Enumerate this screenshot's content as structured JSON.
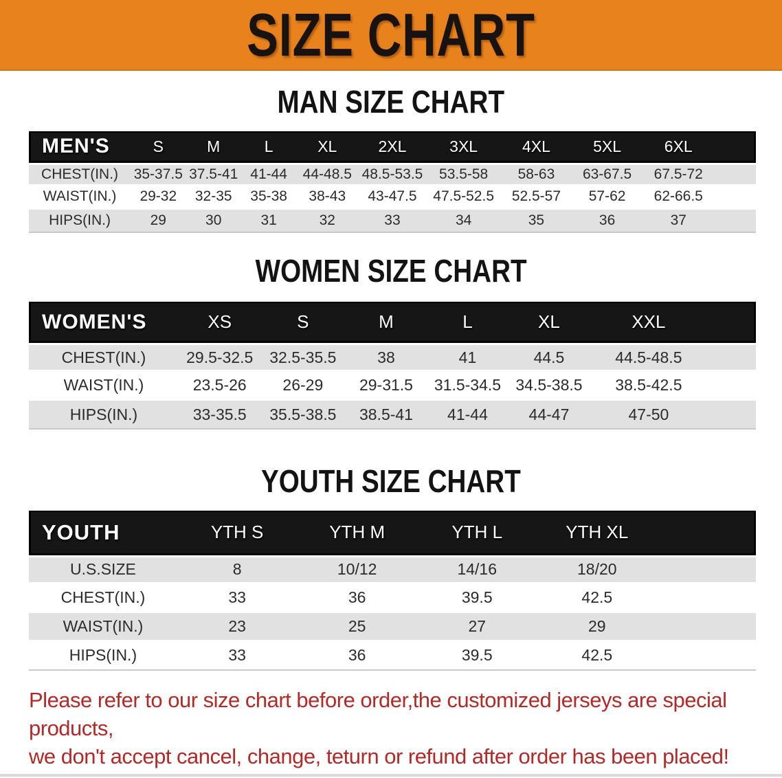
{
  "banner": {
    "title": "SIZE CHART"
  },
  "colors": {
    "banner_bg": "#e8821c",
    "header_bar": "#161616",
    "stripe": "#e1e1e1",
    "disclaimer_text": "#b22a28"
  },
  "sections": [
    {
      "title": "MAN SIZE CHART",
      "table": {
        "header_label": "MEN'S",
        "columns": [
          "S",
          "M",
          "L",
          "XL",
          "2XL",
          "3XL",
          "4XL",
          "5XL",
          "6XL"
        ],
        "rows": [
          {
            "label": "CHEST(IN.)",
            "values": [
              "35-37.5",
              "37.5-41",
              "41-44",
              "44-48.5",
              "48.5-53.5",
              "53.5-58",
              "58-63",
              "63-67.5",
              "67.5-72"
            ]
          },
          {
            "label": "WAIST(IN.)",
            "values": [
              "29-32",
              "32-35",
              "35-38",
              "38-43",
              "43-47.5",
              "47.5-52.5",
              "52.5-57",
              "57-62",
              "62-66.5"
            ]
          },
          {
            "label": "HIPS(IN.)",
            "values": [
              "29",
              "30",
              "31",
              "32",
              "33",
              "34",
              "35",
              "36",
              "37"
            ]
          }
        ]
      }
    },
    {
      "title": "WOMEN SIZE CHART",
      "table": {
        "header_label": "WOMEN'S",
        "columns": [
          "XS",
          "S",
          "M",
          "L",
          "XL",
          "XXL"
        ],
        "rows": [
          {
            "label": "CHEST(IN.)",
            "values": [
              "29.5-32.5",
              "32.5-35.5",
              "38",
              "41",
              "44.5",
              "44.5-48.5"
            ]
          },
          {
            "label": "WAIST(IN.)",
            "values": [
              "23.5-26",
              "26-29",
              "29-31.5",
              "31.5-34.5",
              "34.5-38.5",
              "38.5-42.5"
            ]
          },
          {
            "label": "HIPS(IN.)",
            "values": [
              "33-35.5",
              "35.5-38.5",
              "38.5-41",
              "41-44",
              "44-47",
              "47-50"
            ]
          }
        ]
      }
    },
    {
      "title": "YOUTH SIZE CHART",
      "table": {
        "header_label": "YOUTH",
        "columns": [
          "YTH S",
          "YTH M",
          "YTH L",
          "YTH XL"
        ],
        "rows": [
          {
            "label": "U.S.SIZE",
            "values": [
              "8",
              "10/12",
              "14/16",
              "18/20"
            ]
          },
          {
            "label": "CHEST(IN.)",
            "values": [
              "33",
              "36",
              "39.5",
              "42.5"
            ]
          },
          {
            "label": "WAIST(IN.)",
            "values": [
              "23",
              "25",
              "27",
              "29"
            ]
          },
          {
            "label": "HIPS(IN.)",
            "values": [
              "33",
              "36",
              "39.5",
              "42.5"
            ]
          }
        ]
      }
    }
  ],
  "disclaimer": {
    "line1": "Please refer to our size chart before order,the customized jerseys are special products,",
    "line2": "we don't accept cancel, change, teturn or refund after order has been placed!"
  }
}
